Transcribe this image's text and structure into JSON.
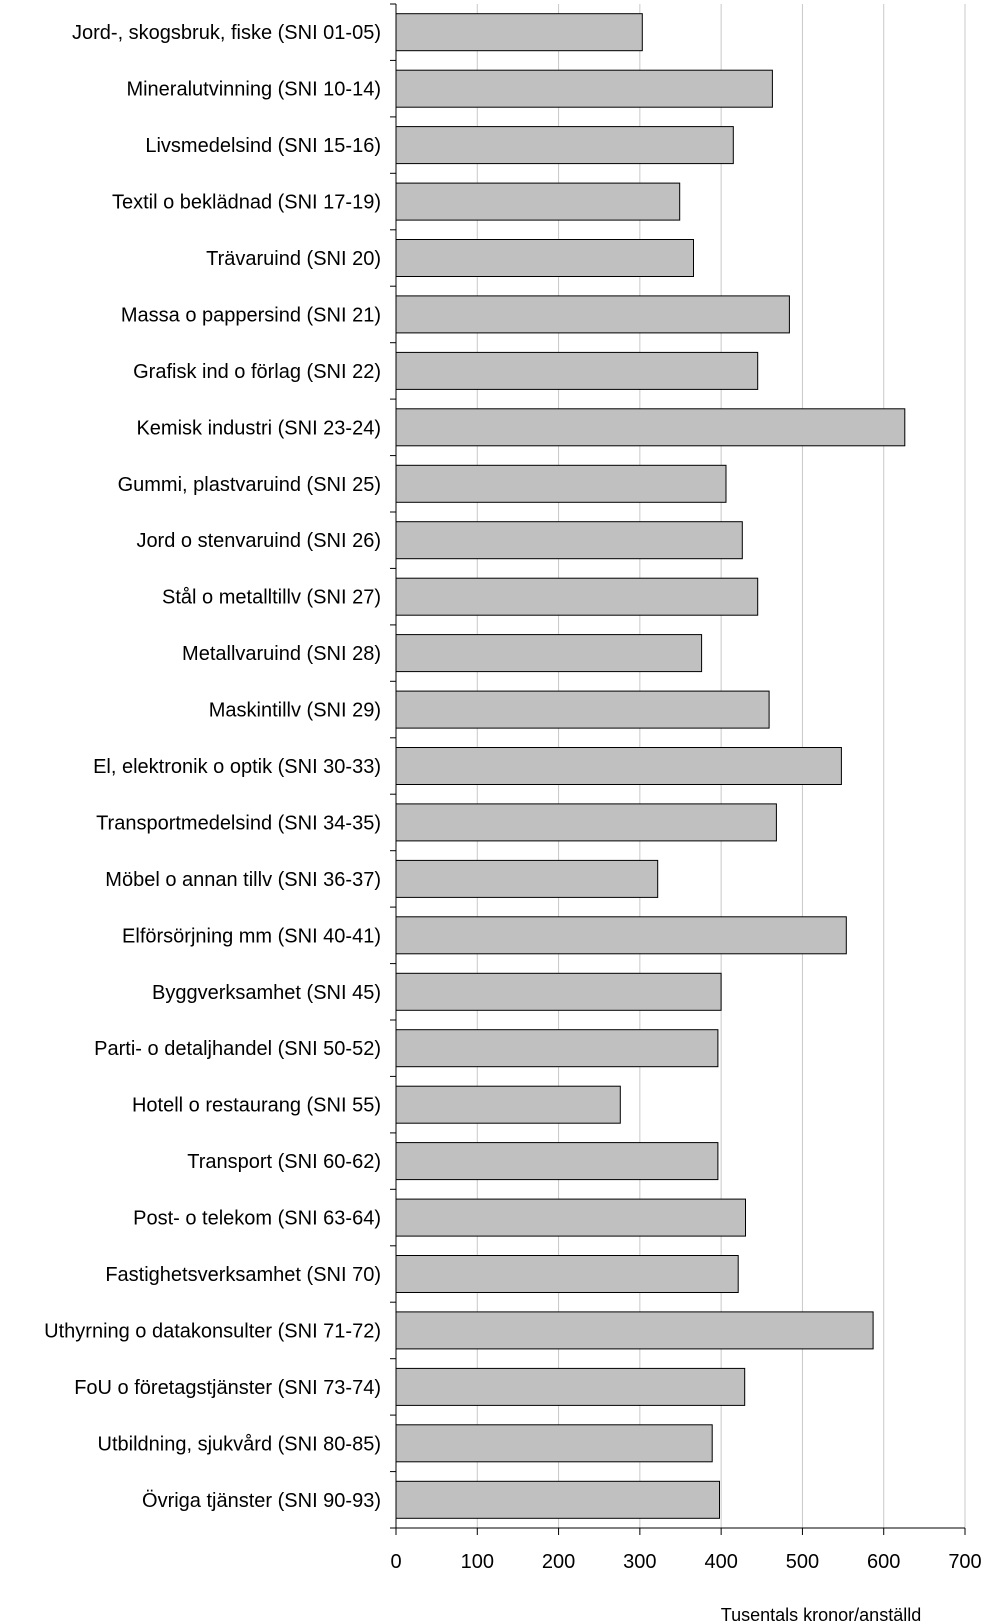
{
  "chart_data": {
    "type": "bar",
    "orientation": "horizontal",
    "xlabel": "Tusentals kronor/anställd",
    "ylabel": "",
    "xlim": [
      0,
      700
    ],
    "xticks": [
      0,
      100,
      200,
      300,
      400,
      500,
      600,
      700
    ],
    "grid": true,
    "legend": "none",
    "bar_color": "#c0c0c0",
    "bar_edge_color": "#000000",
    "grid_color": "#c8c8c8",
    "categories": [
      "Jord-, skogsbruk, fiske (SNI 01-05)",
      "Mineralutvinning (SNI 10-14)",
      "Livsmedelsind (SNI 15-16)",
      "Textil o beklädnad (SNI 17-19)",
      "Trävaruind (SNI 20)",
      "Massa o pappersind (SNI 21)",
      "Grafisk ind o förlag (SNI 22)",
      "Kemisk industri (SNI 23-24)",
      "Gummi, plastvaruind (SNI 25)",
      "Jord o stenvaruind (SNI 26)",
      "Stål o metalltillv (SNI 27)",
      "Metallvaruind (SNI 28)",
      "Maskintillv (SNI 29)",
      "El, elektronik o optik (SNI 30-33)",
      "Transportmedelsind (SNI 34-35)",
      "Möbel o annan tillv (SNI 36-37)",
      "Elförsörjning mm (SNI 40-41)",
      "Byggverksamhet (SNI 45)",
      "Parti- o detaljhandel (SNI 50-52)",
      "Hotell o restaurang (SNI 55)",
      "Transport (SNI 60-62)",
      "Post- o telekom (SNI 63-64)",
      "Fastighetsverksamhet (SNI 70)",
      "Uthyrning o datakonsulter (SNI 71-72)",
      "FoU o företagstjänster (SNI 73-74)",
      "Utbildning, sjukvård (SNI 80-85)",
      "Övriga tjänster (SNI 90-93)"
    ],
    "values": [
      303,
      463,
      415,
      349,
      366,
      484,
      445,
      626,
      406,
      426,
      445,
      376,
      459,
      548,
      468,
      322,
      554,
      400,
      396,
      276,
      396,
      430,
      421,
      587,
      429,
      389,
      398
    ]
  }
}
